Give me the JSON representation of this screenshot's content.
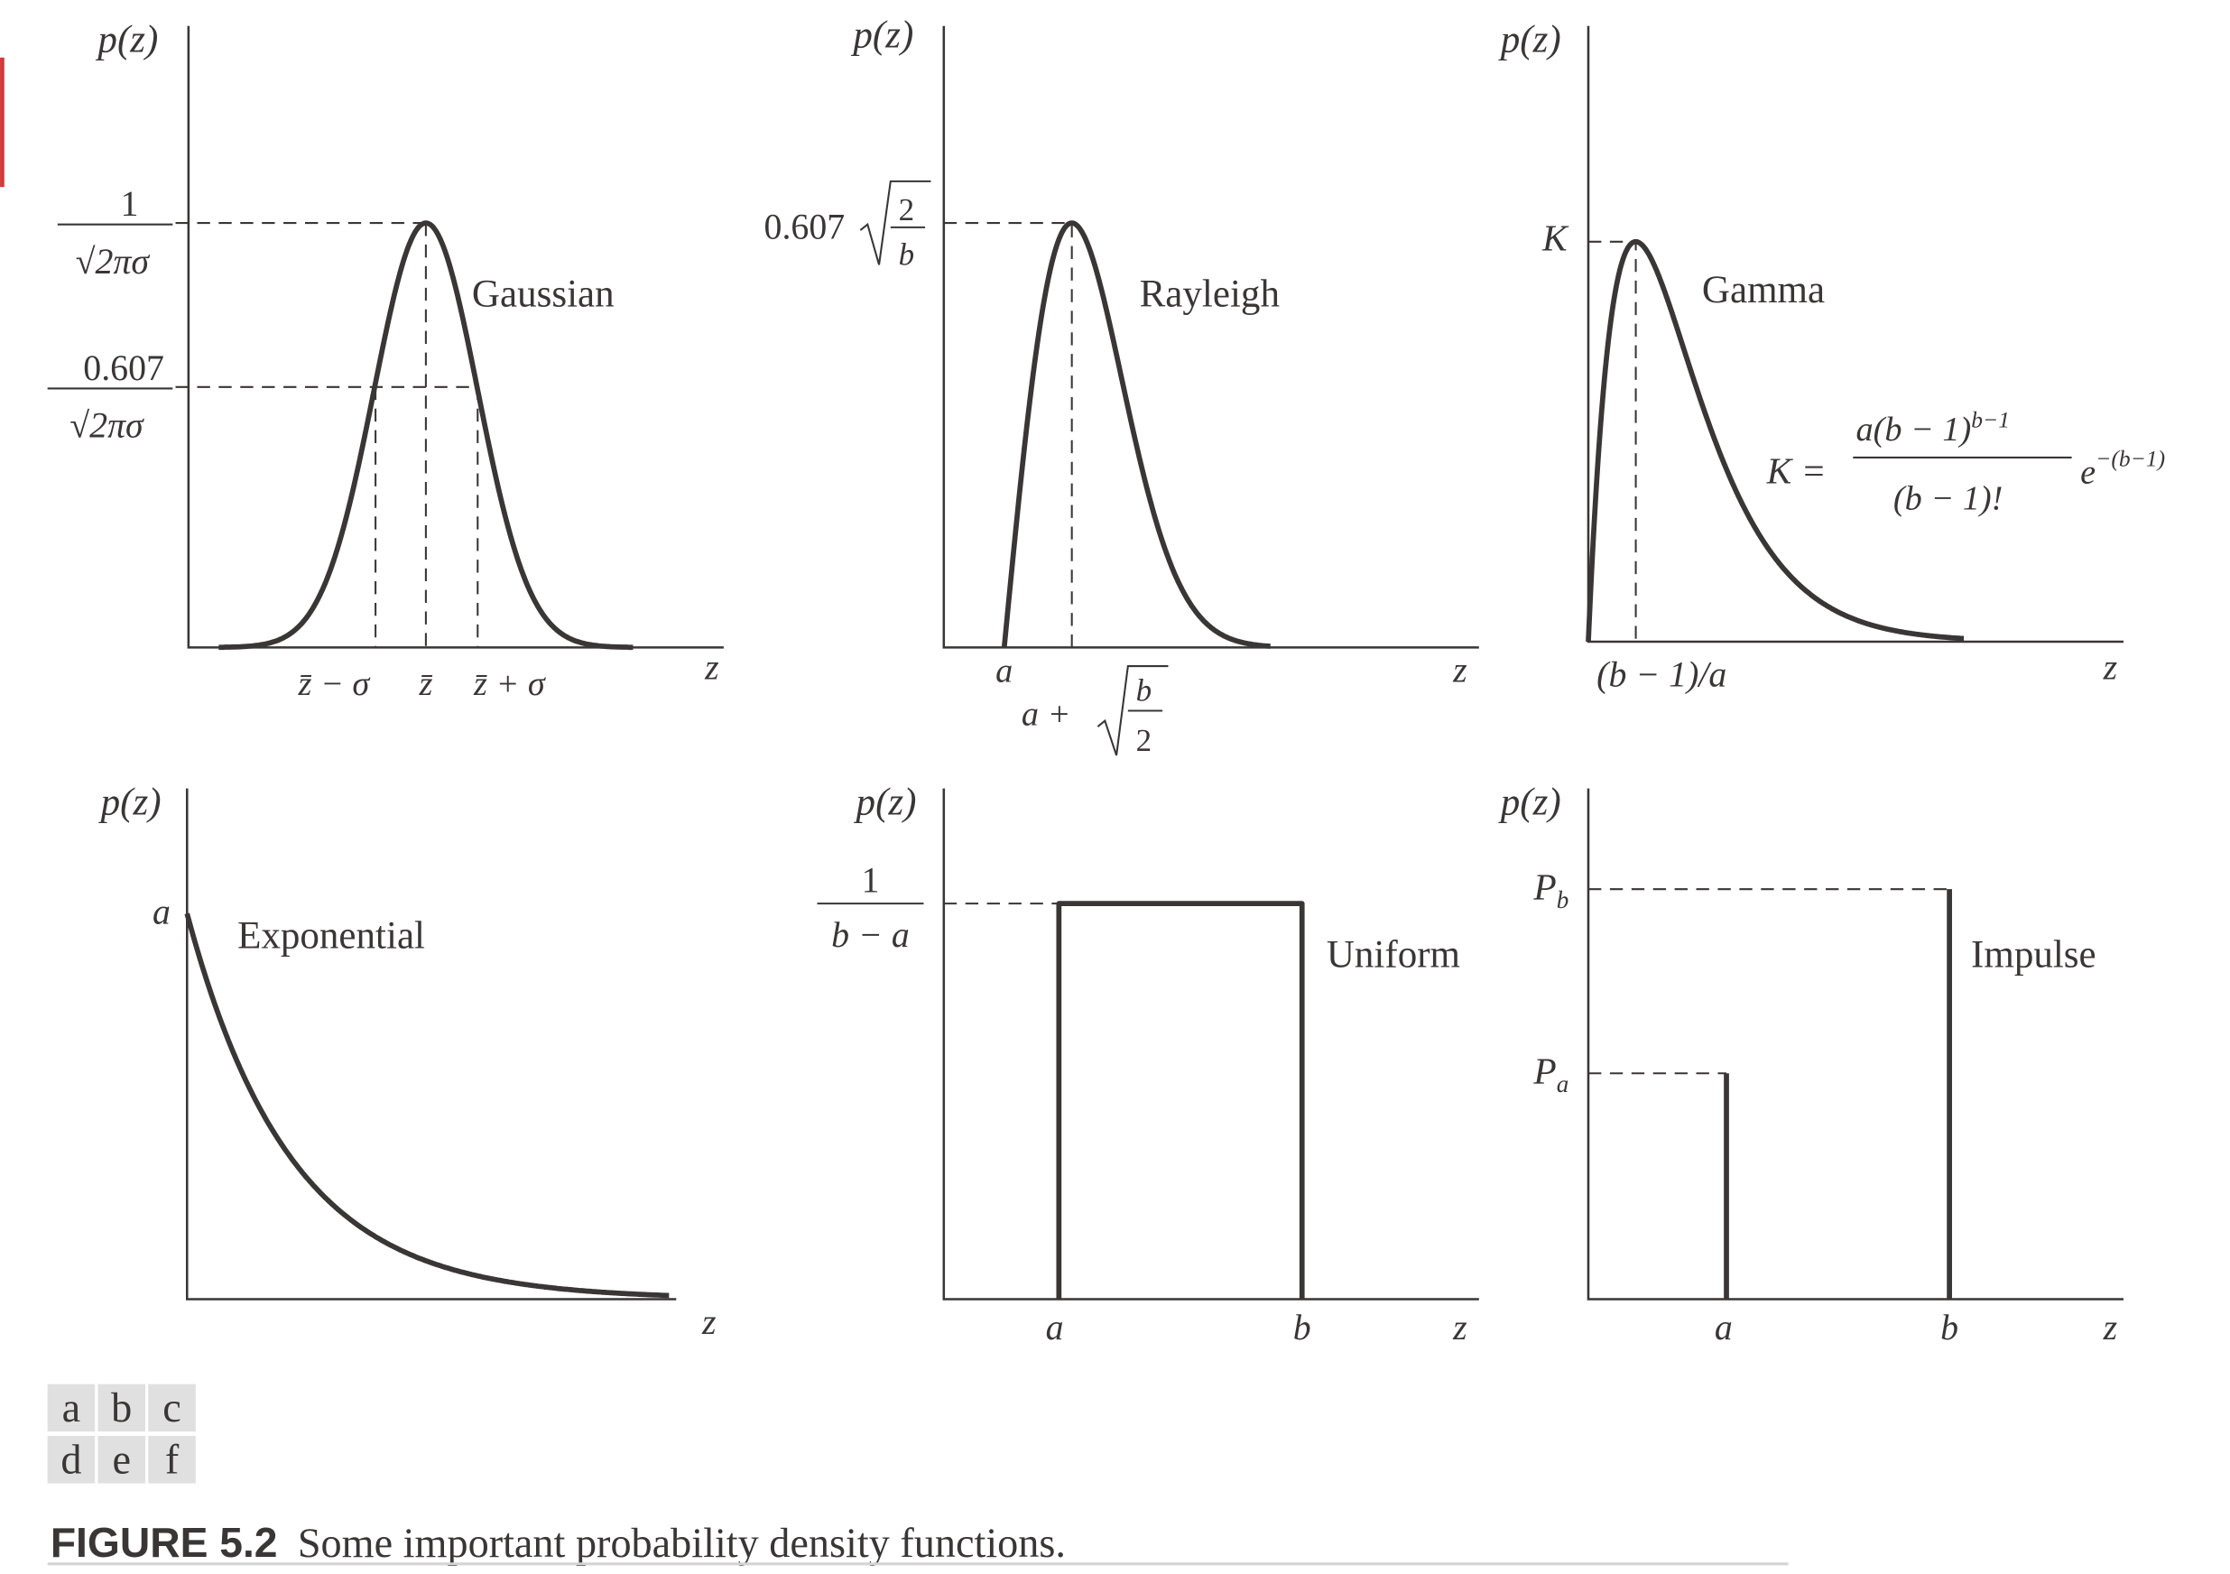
{
  "figure": {
    "caption_label": "FIGURE 5.2",
    "caption_text": "Some important probability density functions.",
    "panel_keys": [
      [
        "a",
        "b",
        "c"
      ],
      [
        "d",
        "e",
        "f"
      ]
    ],
    "key_bg": "#e0e0e0",
    "ink": "#3a3636"
  },
  "chart_data": [
    {
      "panel": "a",
      "type": "line",
      "name": "Gaussian",
      "ylabel": "p(z)",
      "xlabel": "z",
      "yticks": [
        {
          "num": "1",
          "den": "√2πσ"
        },
        {
          "num": "0.607",
          "den": "√2πσ"
        }
      ],
      "xticks": [
        "z̄ − σ",
        "z̄",
        "z̄ + σ"
      ]
    },
    {
      "panel": "b",
      "type": "line",
      "name": "Rayleigh",
      "ylabel": "p(z)",
      "xlabel": "z",
      "ytick": {
        "coef": "0.607",
        "num": "2",
        "den": "b"
      },
      "xticks": [
        "a"
      ],
      "xtick_peak": {
        "prefix": "a +",
        "num": "b",
        "den": "2"
      }
    },
    {
      "panel": "c",
      "type": "line",
      "name": "Gamma",
      "ylabel": "p(z)",
      "xlabel": "z",
      "ytick": "K",
      "xticks": [
        "(b − 1)/a"
      ],
      "formula": {
        "lhs": "K =",
        "num": "a(b − 1)",
        "num_exp": "b−1",
        "den": "(b − 1)!",
        "factor": "e",
        "factor_exp": "−(b−1)"
      }
    },
    {
      "panel": "d",
      "type": "line",
      "name": "Exponential",
      "ylabel": "p(z)",
      "xlabel": "z",
      "ytick": "a"
    },
    {
      "panel": "e",
      "type": "line",
      "name": "Uniform",
      "ylabel": "p(z)",
      "xlabel": "z",
      "ytick": {
        "num": "1",
        "den": "b − a"
      },
      "xticks": [
        "a",
        "b"
      ]
    },
    {
      "panel": "f",
      "type": "bar",
      "name": "Impulse",
      "ylabel": "p(z)",
      "xlabel": "z",
      "yticks": [
        "P",
        "P"
      ],
      "ytick_subs": [
        "b",
        "a"
      ],
      "xticks": [
        "a",
        "b"
      ],
      "impulses": [
        {
          "at": "a",
          "height": "Pa"
        },
        {
          "at": "b",
          "height": "Pb"
        }
      ]
    }
  ]
}
